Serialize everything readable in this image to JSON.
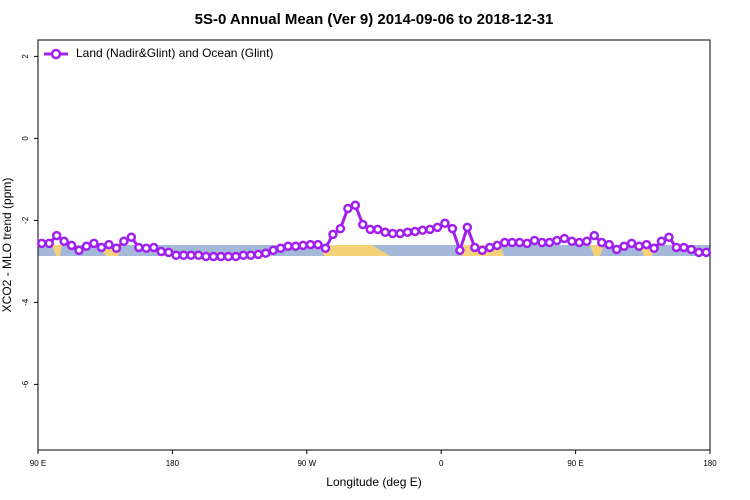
{
  "chart_data": {
    "type": "line",
    "title": "5S-0 Annual Mean (Ver 9)   2014-09-06 to 2018-12-31",
    "x_label": "Longitude (deg E)",
    "y_label": "XCO2 - MLO trend (ppm)",
    "xlim": [
      90,
      540
    ],
    "xticks": [
      {
        "value": 90,
        "label": "90 E"
      },
      180,
      {
        "value": 270,
        "label": "90 W"
      },
      {
        "value": 360,
        "label": "0"
      },
      {
        "value": 450,
        "label": "90 E"
      },
      {
        "value": 540,
        "label": "180"
      }
    ],
    "ylim": [
      -7.6,
      2.4
    ],
    "yticks": [
      -6,
      -4,
      -2,
      0,
      2
    ],
    "legend": "top-left",
    "x": [
      92.5,
      97.5,
      102.5,
      107.5,
      112.5,
      117.5,
      122.5,
      127.5,
      132.5,
      137.5,
      142.5,
      147.5,
      152.5,
      157.5,
      162.5,
      167.5,
      172.5,
      177.5,
      182.5,
      187.5,
      192.5,
      197.5,
      202.5,
      207.5,
      212.5,
      217.5,
      222.5,
      227.5,
      232.5,
      237.5,
      242.5,
      247.5,
      252.5,
      257.5,
      262.5,
      267.5,
      272.5,
      277.5,
      282.5,
      287.5,
      292.5,
      297.5,
      302.5,
      307.5,
      312.5,
      317.5,
      322.5,
      327.5,
      332.5,
      337.5,
      342.5,
      347.5,
      352.5,
      357.5,
      362.5,
      367.5,
      372.5,
      377.5,
      382.5,
      387.5,
      392.5,
      397.5,
      402.5,
      407.5,
      412.5,
      417.5,
      422.5,
      427.5,
      432.5,
      437.5,
      442.5,
      447.5,
      452.5,
      457.5,
      462.5,
      467.5,
      472.5,
      477.5,
      482.5,
      487.5,
      492.5,
      497.5,
      502.5,
      507.5,
      512.5,
      517.5,
      522.5,
      527.5,
      532.5,
      537.5
    ],
    "series": [
      {
        "name": "Land (Nadir&Glint) and Ocean (Glint)",
        "color": "#a020f0",
        "values": [
          -2.56,
          -2.56,
          -2.37,
          -2.51,
          -2.61,
          -2.73,
          -2.63,
          -2.56,
          -2.66,
          -2.59,
          -2.68,
          -2.51,
          -2.41,
          -2.66,
          -2.68,
          -2.66,
          -2.76,
          -2.78,
          -2.85,
          -2.85,
          -2.85,
          -2.85,
          -2.88,
          -2.88,
          -2.88,
          -2.88,
          -2.88,
          -2.85,
          -2.85,
          -2.83,
          -2.8,
          -2.73,
          -2.68,
          -2.63,
          -2.63,
          -2.61,
          -2.59,
          -2.59,
          -2.68,
          -2.34,
          -2.2,
          -1.71,
          -1.63,
          -2.1,
          -2.22,
          -2.22,
          -2.29,
          -2.32,
          -2.32,
          -2.29,
          -2.27,
          -2.24,
          -2.22,
          -2.17,
          -2.07,
          -2.2,
          -2.73,
          -2.17,
          -2.66,
          -2.73,
          -2.66,
          -2.61,
          -2.54,
          -2.54,
          -2.54,
          -2.56,
          -2.49,
          -2.54,
          -2.54,
          -2.49,
          -2.44,
          -2.51,
          -2.54,
          -2.51,
          -2.37,
          -2.54,
          -2.59,
          -2.71,
          -2.63,
          -2.56,
          -2.63,
          -2.59,
          -2.68,
          -2.51,
          -2.41,
          -2.66,
          -2.66,
          -2.71,
          -2.78,
          -2.78
        ]
      }
    ]
  }
}
